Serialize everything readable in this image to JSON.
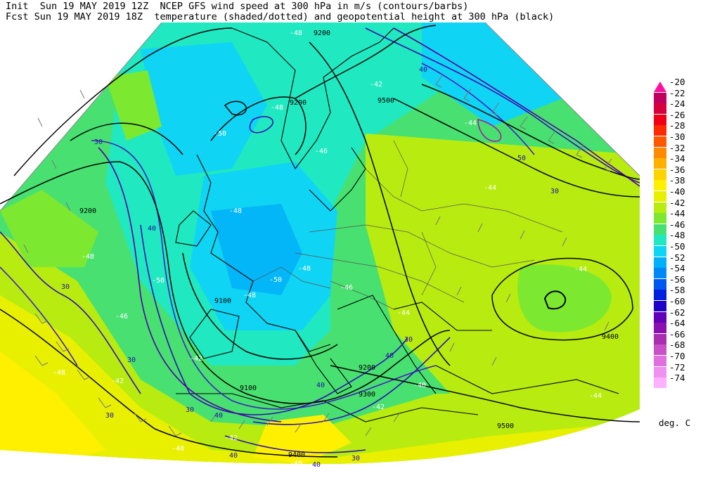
{
  "header": {
    "line1": "Init  Sun 19 MAY 2019 12Z  NCEP GFS wind speed at 300 hPa in m/s (contours/barbs)",
    "line2": "Fcst Sun 19 MAY 2019 18Z  temperature (shaded/dotted) and geopotential height at 300 hPa (black)"
  },
  "legend": {
    "unit": "deg. C",
    "levels": [
      {
        "label": "-20",
        "color": "#ff10a0"
      },
      {
        "label": "-22",
        "color": "#c00060"
      },
      {
        "label": "-24",
        "color": "#d8003a"
      },
      {
        "label": "-26",
        "color": "#f00018"
      },
      {
        "label": "-28",
        "color": "#ff2a00"
      },
      {
        "label": "-30",
        "color": "#ff5800"
      },
      {
        "label": "-32",
        "color": "#ff8a00"
      },
      {
        "label": "-34",
        "color": "#ffb000"
      },
      {
        "label": "-36",
        "color": "#ffd200"
      },
      {
        "label": "-38",
        "color": "#fff000"
      },
      {
        "label": "-40",
        "color": "#e8f000"
      },
      {
        "label": "-42",
        "color": "#b8ec10"
      },
      {
        "label": "-44",
        "color": "#7ce830"
      },
      {
        "label": "-46",
        "color": "#48e070"
      },
      {
        "label": "-48",
        "color": "#20e8c0"
      },
      {
        "label": "-50",
        "color": "#10d4f4"
      },
      {
        "label": "-52",
        "color": "#00b0f8"
      },
      {
        "label": "-54",
        "color": "#0088f8"
      },
      {
        "label": "-56",
        "color": "#0058f0"
      },
      {
        "label": "-58",
        "color": "#0020e0"
      },
      {
        "label": "-60",
        "color": "#2000c8"
      },
      {
        "label": "-62",
        "color": "#6000b8"
      },
      {
        "label": "-64",
        "color": "#8a10b0"
      },
      {
        "label": "-66",
        "color": "#a830b0"
      },
      {
        "label": "-68",
        "color": "#c850c8"
      },
      {
        "label": "-70",
        "color": "#e070e0"
      },
      {
        "label": "-72",
        "color": "#f090f0"
      },
      {
        "label": "-74",
        "color": "#ffb0ff"
      }
    ]
  },
  "map_labels": {
    "height": [
      "9200",
      "9200",
      "9500",
      "9200",
      "9100",
      "9200",
      "9100",
      "9300",
      "9400",
      "9400",
      "9500"
    ],
    "wind": [
      "30",
      "40",
      "30",
      "30",
      "30",
      "40",
      "30",
      "40",
      "40",
      "50",
      "40",
      "30",
      "30",
      "40",
      "40",
      "30"
    ],
    "temp": [
      "-48",
      "-48",
      "-50",
      "-48",
      "-42",
      "-46",
      "-48",
      "-50",
      "-48",
      "-48",
      "-46",
      "-50",
      "-44",
      "-44",
      "-46",
      "-42",
      "-44",
      "-42",
      "-42",
      "-40",
      "-40",
      "-48",
      "-44",
      "-42",
      "-40",
      "-44"
    ]
  }
}
